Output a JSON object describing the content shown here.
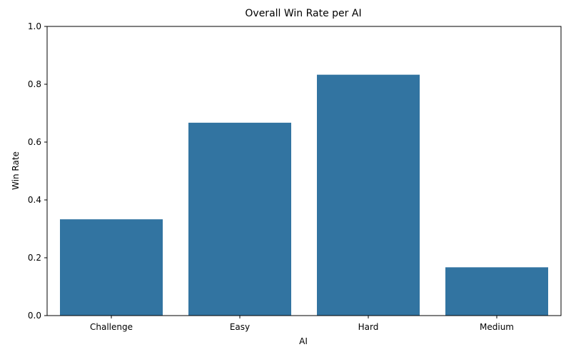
{
  "chart_data": {
    "type": "bar",
    "title": "Overall Win Rate per AI",
    "xlabel": "AI",
    "ylabel": "Win Rate",
    "categories": [
      "Challenge",
      "Easy",
      "Hard",
      "Medium"
    ],
    "values": [
      0.333,
      0.667,
      0.833,
      0.167
    ],
    "ylim": [
      0,
      1.0
    ],
    "yticks": [
      "0.0",
      "0.2",
      "0.4",
      "0.6",
      "0.8",
      "1.0"
    ],
    "grid": false,
    "bar_color": "#3274a1"
  }
}
